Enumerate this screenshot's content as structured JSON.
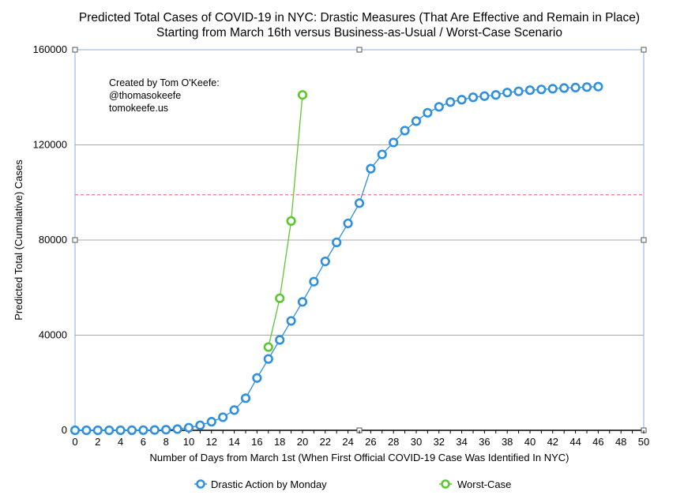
{
  "chart_data": {
    "type": "line",
    "title": [
      "Predicted Total Cases of COVID-19 in NYC: Drastic Measures (That Are Effective and Remain in Place)",
      "Starting from March 16th versus Business-as-Usual / Worst-Case Scenario"
    ],
    "xlabel": "Number of Days from March 1st (When First Official COVID-19 Case Was Identified In NYC)",
    "ylabel": "Predicted Total (Cumulative) Cases",
    "xlim": [
      0,
      50
    ],
    "ylim": [
      0,
      160000
    ],
    "x_ticks": [
      0,
      2,
      4,
      6,
      8,
      10,
      12,
      14,
      16,
      18,
      20,
      22,
      24,
      26,
      28,
      30,
      32,
      34,
      36,
      38,
      40,
      42,
      44,
      46,
      48,
      50
    ],
    "y_ticks": [
      0,
      40000,
      80000,
      120000,
      160000
    ],
    "y_tick_labels": [
      "0",
      "40000",
      "80000",
      "120000",
      "160000"
    ],
    "grid": "horizontal",
    "reference_line": {
      "y": 99000,
      "style": "dashed",
      "color": "#e06060"
    },
    "annotation": [
      "Created by Tom O'Keefe:",
      "@thomasokeefe",
      "tomokeefe.us"
    ],
    "legend_position": "bottom",
    "series": [
      {
        "name": "Drastic Action by Monday",
        "color": "#2f8fe0",
        "x": [
          0,
          1,
          2,
          3,
          4,
          5,
          6,
          7,
          8,
          9,
          10,
          11,
          12,
          13,
          14,
          15,
          16,
          17,
          18,
          19,
          20,
          21,
          22,
          23,
          24,
          25,
          26,
          27,
          28,
          29,
          30,
          31,
          32,
          33,
          34,
          35,
          36,
          37,
          38,
          39,
          40,
          41,
          42,
          43,
          44,
          45,
          46
        ],
        "values": [
          1,
          2,
          4,
          8,
          16,
          32,
          64,
          128,
          256,
          512,
          1100,
          2100,
          3600,
          5500,
          8500,
          13500,
          22000,
          30000,
          38000,
          46000,
          54000,
          62500,
          71000,
          79000,
          87000,
          95500,
          110000,
          116000,
          121000,
          126000,
          130000,
          133500,
          136000,
          138000,
          139000,
          140000,
          140500,
          141000,
          142000,
          142500,
          143000,
          143300,
          143600,
          143900,
          144100,
          144300,
          144500
        ]
      },
      {
        "name": "Worst-Case",
        "color": "#5cc830",
        "x": [
          17,
          18,
          19,
          20
        ],
        "values": [
          35000,
          55500,
          88000,
          141000
        ]
      }
    ]
  }
}
